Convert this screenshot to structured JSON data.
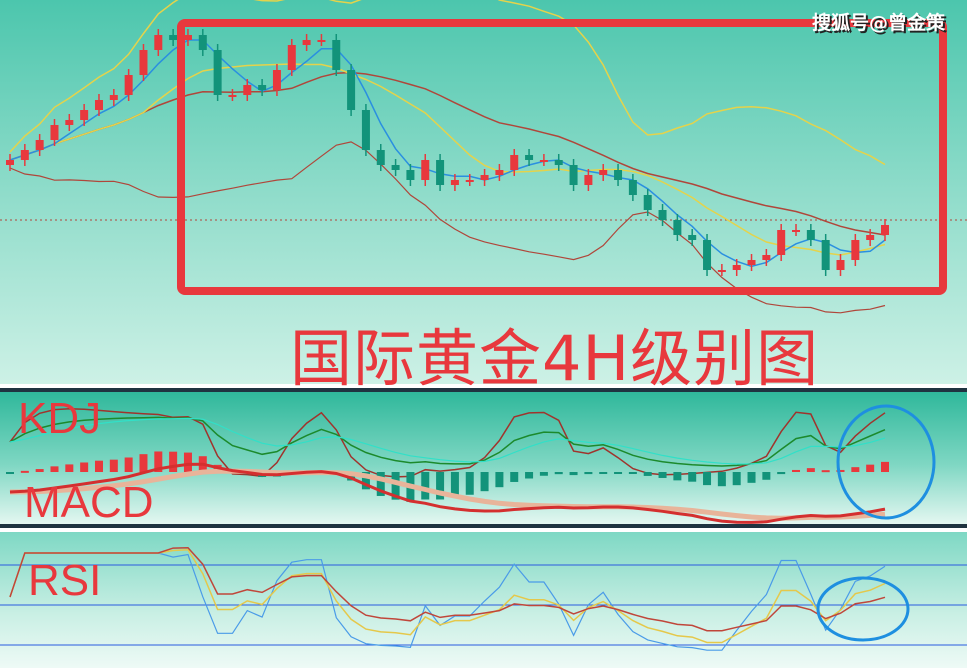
{
  "watermark": "搜狐号@曾金策",
  "title": "国际黄金4H级别图",
  "labels": {
    "kdj": "KDJ",
    "macd": "MACD",
    "rsi": "RSI"
  },
  "colors": {
    "up": "#e8383d",
    "down": "#12937a",
    "highlight_box": "#e8383d",
    "highlight_ellipse": "#1e8fe0",
    "ma_fast": "#2a8fe0",
    "ma_mid": "#e5d34a",
    "ma_slow": "#b0463a"
  },
  "chart_data": [
    {
      "type": "candlestick",
      "title": "国际黄金4H级别图",
      "grid": false,
      "axes_visible": false,
      "overlays": [
        "MA",
        "Bollinger bands"
      ],
      "reference_line": "dotted horizontal",
      "close": [
        140,
        150,
        160,
        175,
        180,
        190,
        200,
        205,
        225,
        250,
        265,
        260,
        265,
        250,
        205,
        205,
        215,
        210,
        230,
        255,
        260,
        260,
        230,
        190,
        150,
        135,
        130,
        120,
        140,
        115,
        120,
        120,
        125,
        130,
        145,
        140,
        140,
        135,
        115,
        125,
        130,
        120,
        105,
        90,
        80,
        65,
        60,
        30,
        30,
        35,
        40,
        45,
        70,
        70,
        60,
        30,
        40,
        60,
        65,
        75
      ],
      "highlight": "box around recent decline"
    },
    {
      "type": "line",
      "name": "KDJ",
      "highlight": "ellipse on latest bars"
    },
    {
      "type": "bar",
      "name": "MACD",
      "highlight": "ellipse on latest bars"
    },
    {
      "type": "line",
      "name": "RSI",
      "highlight": "ellipse on latest bars"
    }
  ]
}
